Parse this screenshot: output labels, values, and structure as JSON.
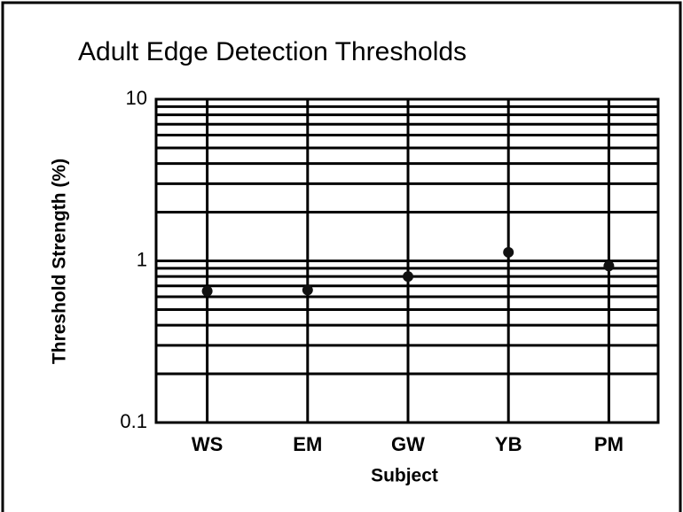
{
  "chart_data": {
    "type": "scatter",
    "title": "Adult Edge Detection Thresholds",
    "xlabel": "Subject",
    "ylabel": "Threshold Strength (%)",
    "categories": [
      "WS",
      "EM",
      "GW",
      "YB",
      "PM"
    ],
    "values": [
      0.65,
      0.66,
      0.8,
      1.13,
      0.93
    ],
    "color": "#111111",
    "ylim": [
      0.1,
      10
    ],
    "yticks": [
      0.1,
      1,
      10
    ],
    "log_y": true,
    "grid": true,
    "minor_grid": true
  }
}
